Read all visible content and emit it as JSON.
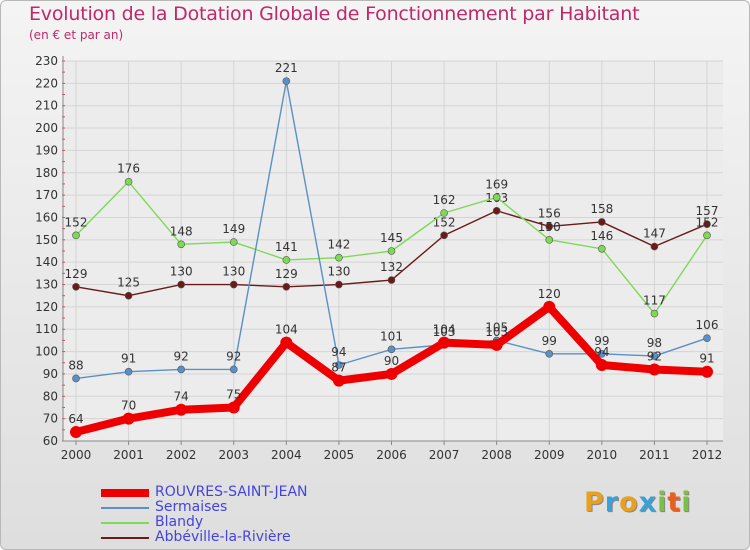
{
  "chart_data": {
    "type": "line",
    "title": "Evolution de la Dotation Globale de Fonctionnement par Habitant",
    "subtitle": "(en € et par an)",
    "xlabel": "",
    "ylabel": "",
    "x": [
      "2000",
      "2001",
      "2002",
      "2003",
      "2004",
      "2005",
      "2006",
      "2007",
      "2008",
      "2009",
      "2010",
      "2011",
      "2012"
    ],
    "ylim": [
      60,
      230
    ],
    "yticks": [
      "60",
      "70",
      "80",
      "90",
      "100",
      "110",
      "120",
      "130",
      "140",
      "150",
      "160",
      "170",
      "180",
      "190",
      "200",
      "210",
      "220",
      "230"
    ],
    "grid": true,
    "legend_position": "bottom-left",
    "series": [
      {
        "name": "Abbéville-la-Rivière",
        "color": "#6b1a1a",
        "values": [
          129,
          125,
          130,
          130,
          129,
          130,
          132,
          152,
          163,
          156,
          158,
          147,
          157
        ],
        "labels": [
          "129",
          "125",
          "130",
          "130",
          "129",
          "130",
          "132",
          "152",
          "163",
          "156",
          "158",
          "147",
          "157"
        ]
      },
      {
        "name": "Blandy",
        "color": "#7ed957",
        "values": [
          152,
          176,
          148,
          149,
          141,
          142,
          145,
          162,
          169,
          150,
          146,
          117,
          152
        ],
        "labels": [
          "152",
          "176",
          "148",
          "149",
          "141",
          "142",
          "145",
          "162",
          "169",
          "150",
          "146",
          "117",
          "152"
        ]
      },
      {
        "name": "Sermaises",
        "color": "#5b8fc7",
        "values": [
          88,
          91,
          92,
          92,
          221,
          94,
          101,
          103,
          105,
          99,
          99,
          98,
          106
        ],
        "labels": [
          "88",
          "91",
          "92",
          "92",
          "221",
          "94",
          "101",
          "103",
          "105",
          "99",
          "99",
          "98",
          "106"
        ]
      },
      {
        "name": "ROUVRES-SAINT-JEAN",
        "color": "#ee0000",
        "values": [
          64,
          70,
          74,
          75,
          104,
          87,
          90,
          104,
          103,
          120,
          94,
          92,
          91
        ],
        "labels": [
          "64",
          "70",
          "74",
          "75",
          "104",
          "87",
          "90",
          "104",
          "103",
          "120",
          "94",
          "92",
          "91"
        ]
      }
    ]
  },
  "legend": {
    "items": [
      {
        "label": "ROUVRES-SAINT-JEAN",
        "color": "#ee0000"
      },
      {
        "label": "Sermaises",
        "color": "#5b8fc7"
      },
      {
        "label": "Blandy",
        "color": "#7ed957"
      },
      {
        "label": "Abbéville-la-Rivière",
        "color": "#6b1a1a"
      }
    ]
  },
  "logo": {
    "letters": [
      "P",
      "r",
      "o",
      "x",
      "i",
      "t",
      "i"
    ],
    "colors": [
      "#e8a020",
      "#3aa0d8",
      "#e8a020",
      "#3aa0d8",
      "#7ac143",
      "#e86020",
      "#7ac143"
    ]
  }
}
